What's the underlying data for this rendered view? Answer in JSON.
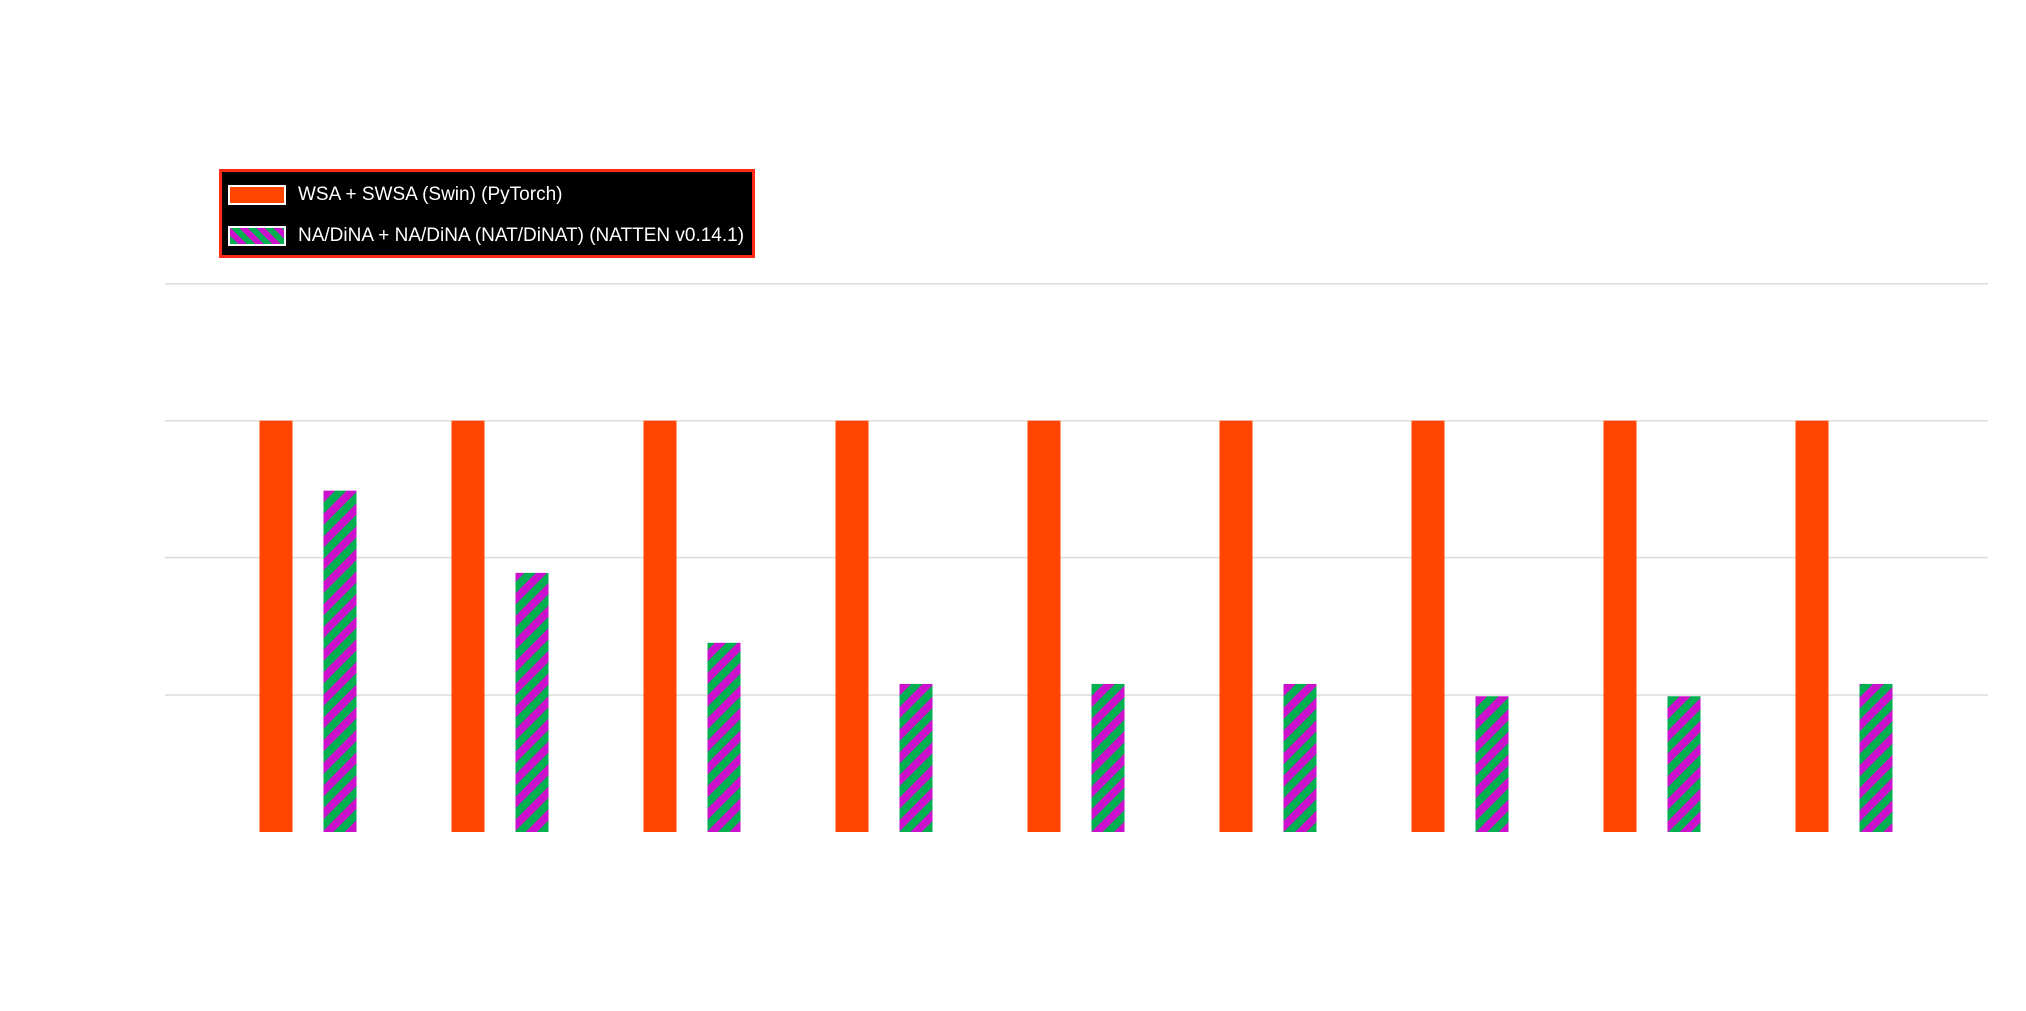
{
  "chart_data": {
    "type": "bar",
    "categories": [
      "",
      "",
      "",
      "",
      "",
      "",
      "",
      "",
      ""
    ],
    "series": [
      {
        "name": "WSA + SWSA (Swin) (PyTorch)",
        "color": "#ff4500",
        "pattern": "solid",
        "values": [
          1.0,
          1.0,
          1.0,
          1.0,
          1.0,
          1.0,
          1.0,
          1.0,
          1.0
        ]
      },
      {
        "name": "NA/DiNA + NA/DiNA (NAT/DiNAT) (NATTEN v0.14.1)",
        "colors": [
          "#00b050",
          "#cc11cc"
        ],
        "pattern": "diagonal-stripes",
        "values": [
          0.83,
          0.63,
          0.46,
          0.36,
          0.36,
          0.36,
          0.33,
          0.33,
          0.36
        ]
      }
    ],
    "ylim": [
      0,
      1.33
    ],
    "grid_values": [
      0.333,
      0.667,
      1.0,
      1.333
    ],
    "grid": true,
    "legend_position": "top-left",
    "title": "",
    "xlabel": "",
    "ylabel": ""
  }
}
